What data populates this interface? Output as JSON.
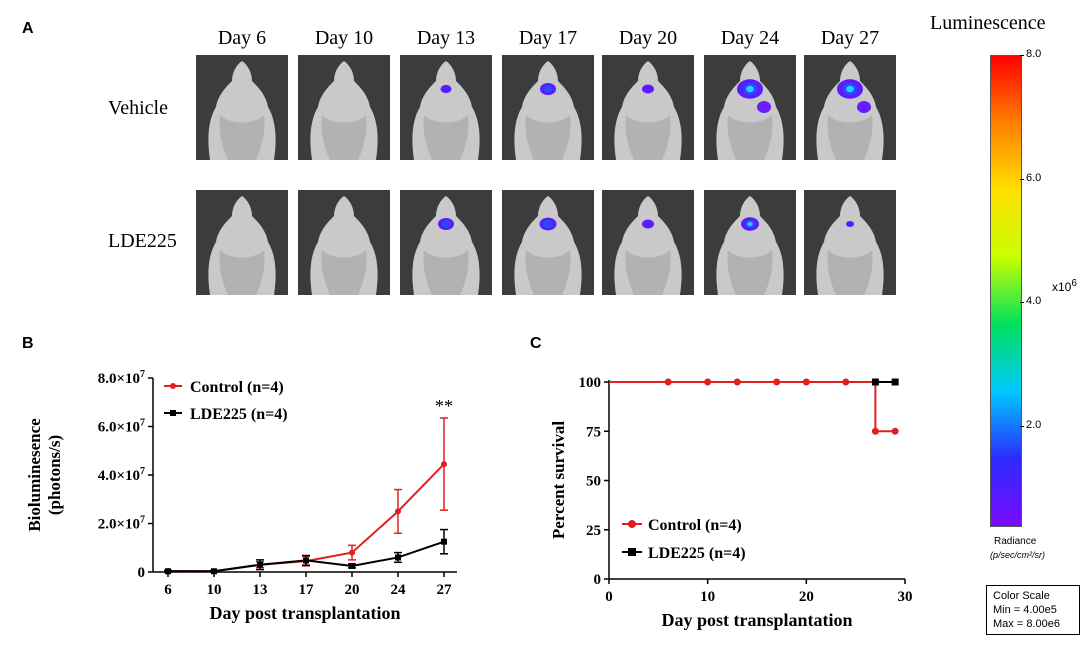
{
  "panel_a": {
    "label": "A",
    "days": [
      "Day 6",
      "Day 10",
      "Day 13",
      "Day 17",
      "Day 20",
      "Day 24",
      "Day 27"
    ],
    "rows": [
      {
        "name": "Vehicle",
        "signal_intensity": [
          0,
          0,
          0.25,
          0.5,
          0.3,
          1.0,
          1.0
        ]
      },
      {
        "name": "LDE225",
        "signal_intensity": [
          0,
          0,
          0.5,
          0.55,
          0.3,
          0.6,
          0.1
        ]
      }
    ]
  },
  "colorbar": {
    "title": "Luminescence",
    "ticks": [
      "8.0",
      "6.0",
      "4.0",
      "2.0"
    ],
    "tick_values": [
      8.0,
      6.0,
      4.0,
      2.0
    ],
    "exponent_base": "x10",
    "exponent_power": "6",
    "radiance_label": "Radiance",
    "radiance_units": "(p/sec/cm²/sr)",
    "scale_title": "Color Scale",
    "scale_min": "Min = 4.00e5",
    "scale_max": "Max = 8.00e6",
    "min": 0.4,
    "max": 8.0,
    "colors": [
      "#7a0bff",
      "#2b2bff",
      "#00c8ff",
      "#00e060",
      "#c8ff00",
      "#ffe000",
      "#ff8000",
      "#ff0000"
    ]
  },
  "chart_data": [
    {
      "panel": "B",
      "type": "line",
      "xlabel": "Day post transplantation",
      "ylabel_line1": "Bioluminesence",
      "ylabel_line2": "(photons/s)",
      "categories": [
        "6",
        "10",
        "13",
        "17",
        "20",
        "24",
        "27"
      ],
      "ylim": [
        0,
        80000000
      ],
      "yticks": [
        0,
        20000000,
        40000000,
        60000000,
        80000000
      ],
      "ytick_labels": [
        {
          "mant": "0",
          "exp": ""
        },
        {
          "mant": "2.0×10",
          "exp": "7"
        },
        {
          "mant": "4.0×10",
          "exp": "7"
        },
        {
          "mant": "6.0×10",
          "exp": "7"
        },
        {
          "mant": "8.0×10",
          "exp": "7"
        }
      ],
      "annotation": "**",
      "series": [
        {
          "name": "Control (n=4)",
          "color": "#e02020",
          "values": [
            400000,
            300000,
            3000000,
            4500000,
            8000000,
            25000000,
            44500000
          ],
          "errors": [
            300000,
            300000,
            1200000,
            2000000,
            3000000,
            9000000,
            19000000
          ]
        },
        {
          "name": "LDE225 (n=4)",
          "color": "#000000",
          "values": [
            300000,
            300000,
            3000000,
            4800000,
            2500000,
            6000000,
            12500000
          ],
          "errors": [
            300000,
            300000,
            2000000,
            2000000,
            800000,
            2000000,
            5000000
          ]
        }
      ]
    },
    {
      "panel": "C",
      "type": "line",
      "subtype": "step",
      "xlabel": "Day post transplantation",
      "ylabel": "Percent survival",
      "xlim": [
        0,
        30
      ],
      "xticks": [
        0,
        10,
        20,
        30
      ],
      "ylim": [
        0,
        100
      ],
      "yticks": [
        0,
        25,
        50,
        75,
        100
      ],
      "series": [
        {
          "name": "Control (n=4)",
          "color": "#e02020",
          "marker": "circle",
          "points": [
            [
              0,
              100
            ],
            [
              27,
              100
            ],
            [
              27,
              75
            ],
            [
              29,
              75
            ]
          ],
          "markers": [
            [
              6,
              100
            ],
            [
              10,
              100
            ],
            [
              13,
              100
            ],
            [
              17,
              100
            ],
            [
              20,
              100
            ],
            [
              24,
              100
            ],
            [
              27,
              75
            ],
            [
              29,
              75
            ]
          ]
        },
        {
          "name": "LDE225 (n=4)",
          "color": "#000000",
          "marker": "square",
          "points": [
            [
              0,
              100
            ],
            [
              29,
              100
            ]
          ],
          "markers": [
            [
              27,
              100
            ],
            [
              29,
              100
            ]
          ]
        }
      ]
    }
  ]
}
